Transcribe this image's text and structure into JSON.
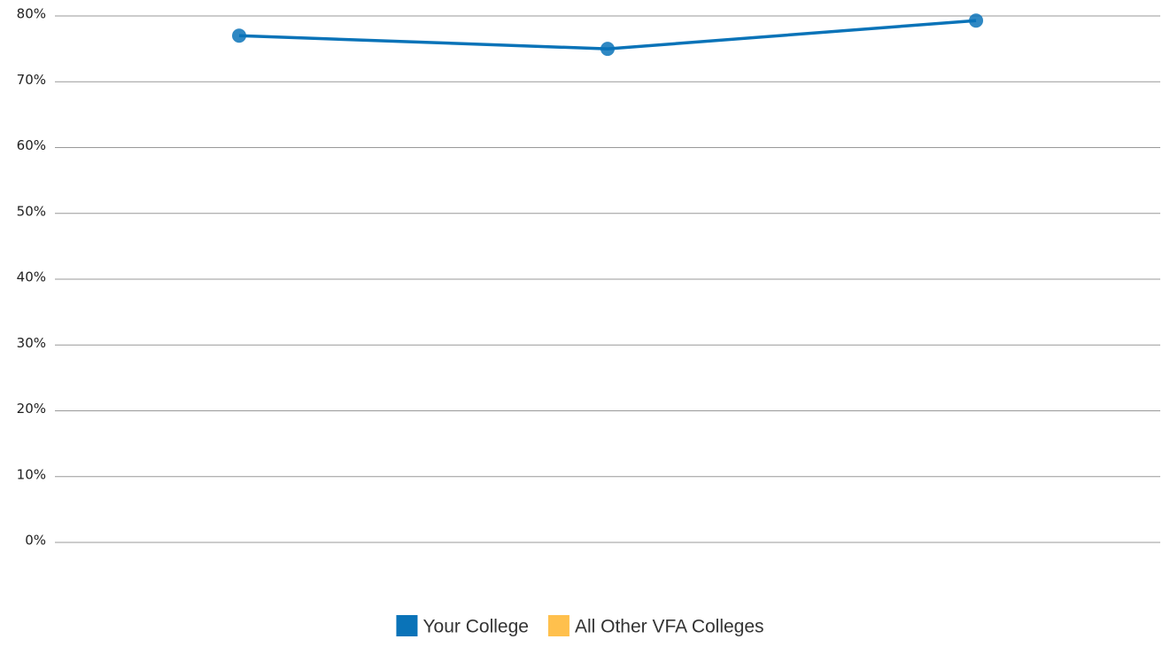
{
  "chart_data": {
    "type": "line",
    "categories": [
      null,
      null,
      null
    ],
    "series": [
      {
        "name": "Your College",
        "color": "#0a73b8",
        "values": [
          77,
          75,
          79.3
        ]
      },
      {
        "name": "All Other VFA Colleges",
        "color": "#ffc04d",
        "values": [
          null,
          null,
          null
        ]
      }
    ],
    "ylim": [
      0,
      80
    ],
    "yticks": [
      {
        "value": 0,
        "label": "0%"
      },
      {
        "value": 10,
        "label": "10%"
      },
      {
        "value": 20,
        "label": "20%"
      },
      {
        "value": 30,
        "label": "30%"
      },
      {
        "value": 40,
        "label": "40%"
      },
      {
        "value": 50,
        "label": "50%"
      },
      {
        "value": 60,
        "label": "60%"
      },
      {
        "value": 70,
        "label": "70%"
      },
      {
        "value": 80,
        "label": "80%"
      }
    ],
    "grid": true,
    "legend": "bottom"
  }
}
